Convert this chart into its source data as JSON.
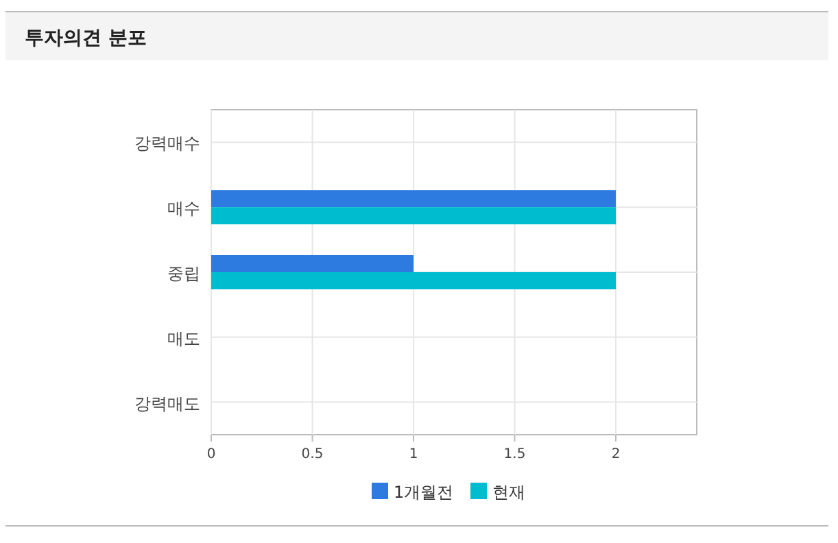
{
  "chart_data": {
    "type": "bar",
    "orientation": "horizontal",
    "title": "투자의견 분포",
    "categories": [
      "강력매수",
      "매수",
      "중립",
      "매도",
      "강력매도"
    ],
    "series": [
      {
        "name": "1개월전",
        "color": "#2d7be0",
        "values": [
          0,
          2,
          1,
          0,
          0
        ]
      },
      {
        "name": "현재",
        "color": "#00bccf",
        "values": [
          0,
          2,
          2,
          0,
          0
        ]
      }
    ],
    "xlim": [
      0,
      2.4
    ],
    "xticks": [
      0,
      0.5,
      1,
      1.5,
      2
    ],
    "grid": true,
    "legend": "bottom"
  }
}
